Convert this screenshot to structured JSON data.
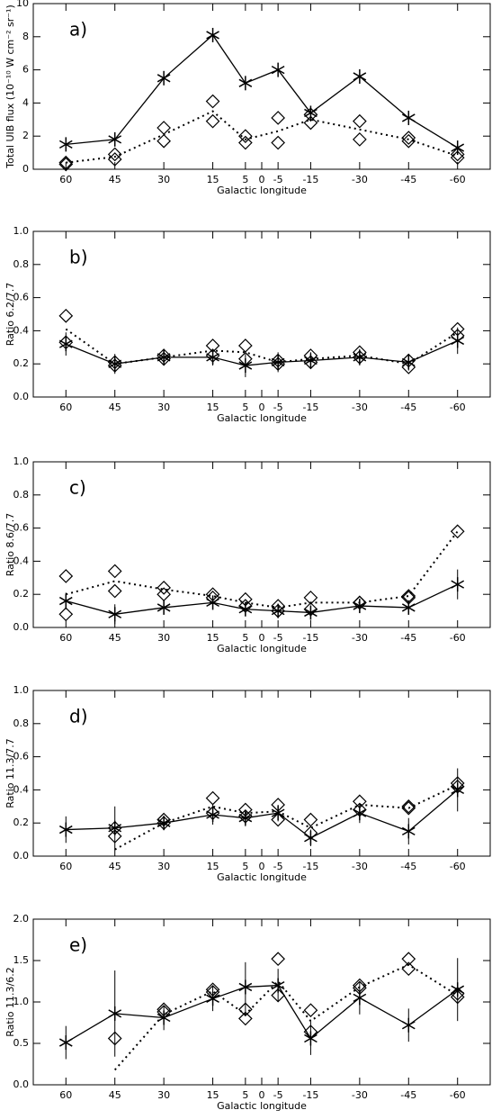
{
  "chart_data": [
    {
      "type": "line",
      "label": "a)",
      "ylabel": "Total UIB flux (10⁻¹⁰ W cm⁻² sr⁻¹)",
      "xlabel": "Galactic longitude",
      "x": [
        60,
        45,
        30,
        15,
        5,
        -5,
        -15,
        -30,
        -45,
        -60
      ],
      "xlim": [
        70,
        -70
      ],
      "xticks": [
        60,
        45,
        30,
        15,
        5,
        0,
        -5,
        -15,
        -30,
        -45,
        -60
      ],
      "ylim": [
        0,
        10
      ],
      "yticks": [
        0,
        2,
        4,
        6,
        8,
        10
      ],
      "series": [
        {
          "color": "#000",
          "marker": "asterisk",
          "line": "solid",
          "values": [
            1.5,
            1.8,
            5.5,
            8.1,
            5.2,
            6.0,
            3.4,
            5.6,
            3.1,
            1.3
          ]
        },
        {
          "color": "#000",
          "marker": "diamond",
          "line": "none",
          "values": [
            0.4,
            0.9,
            2.5,
            4.1,
            2.0,
            3.1,
            3.3,
            2.9,
            1.9,
            0.9
          ]
        },
        {
          "color": "#000",
          "marker": "diamond",
          "line": "none",
          "values": [
            0.3,
            0.6,
            1.7,
            2.9,
            1.6,
            1.6,
            2.8,
            1.8,
            1.7,
            0.7
          ]
        },
        {
          "color": "#000",
          "marker": "none",
          "line": "dotted",
          "values": [
            0.4,
            0.75,
            2.1,
            3.5,
            1.8,
            2.3,
            3.0,
            2.4,
            1.8,
            0.8
          ]
        }
      ]
    },
    {
      "type": "line",
      "label": "b)",
      "ylabel": "Ratio 6.2/7.7",
      "xlabel": "Galactic longitude",
      "x": [
        60,
        45,
        30,
        15,
        5,
        -5,
        -15,
        -30,
        -45,
        -60
      ],
      "xlim": [
        70,
        -70
      ],
      "xticks": [
        60,
        45,
        30,
        15,
        5,
        0,
        -5,
        -15,
        -30,
        -45,
        -60
      ],
      "ylim": [
        0,
        1
      ],
      "yticks": [
        {
          "value": 0,
          "label": "0.0"
        },
        0.2,
        0.4,
        0.6,
        0.8,
        {
          "value": 1,
          "label": "1.0"
        }
      ],
      "series": [
        {
          "color": "#000",
          "marker": "asterisk",
          "line": "solid",
          "values": [
            0.32,
            0.2,
            0.24,
            0.24,
            0.19,
            0.21,
            0.22,
            0.24,
            0.21,
            0.34
          ],
          "errors": [
            0.07,
            0.06,
            0.05,
            0.05,
            0.07,
            0.06,
            0.05,
            0.05,
            0.05,
            0.08
          ]
        },
        {
          "color": "#000",
          "marker": "diamond",
          "line": "none",
          "values": [
            0.49,
            0.21,
            0.25,
            0.31,
            0.31,
            0.22,
            0.25,
            0.27,
            0.22,
            0.41
          ]
        },
        {
          "color": "#000",
          "marker": "diamond",
          "line": "none",
          "values": [
            0.33,
            0.19,
            0.23,
            0.25,
            0.23,
            0.2,
            0.21,
            0.24,
            0.18,
            0.37
          ]
        },
        {
          "color": "#000",
          "marker": "none",
          "line": "dotted",
          "values": [
            0.41,
            0.2,
            0.24,
            0.28,
            0.27,
            0.21,
            0.23,
            0.25,
            0.2,
            0.39
          ]
        }
      ]
    },
    {
      "type": "line",
      "label": "c)",
      "ylabel": "Ratio 8.6/7.7",
      "xlabel": "Galactic longitude",
      "x": [
        60,
        45,
        30,
        15,
        5,
        -5,
        -15,
        -30,
        -45,
        -60
      ],
      "xlim": [
        70,
        -70
      ],
      "xticks": [
        60,
        45,
        30,
        15,
        5,
        0,
        -5,
        -15,
        -30,
        -45,
        -60
      ],
      "ylim": [
        0,
        1
      ],
      "yticks": [
        {
          "value": 0,
          "label": "0.0"
        },
        0.2,
        0.4,
        0.6,
        0.8,
        {
          "value": 1,
          "label": "1.0"
        }
      ],
      "series": [
        {
          "color": "#000",
          "marker": "asterisk",
          "line": "solid",
          "values": [
            0.16,
            0.08,
            0.12,
            0.15,
            0.11,
            0.1,
            0.09,
            0.13,
            0.12,
            0.26
          ],
          "errors": [
            0.05,
            0.06,
            0.04,
            0.04,
            0.04,
            0.04,
            0.04,
            0.04,
            0.04,
            0.09
          ]
        },
        {
          "color": "#000",
          "marker": "diamond",
          "line": "none",
          "values": [
            0.31,
            0.34,
            0.24,
            0.2,
            0.17,
            0.13,
            0.18,
            0.15,
            0.19,
            0.58
          ]
        },
        {
          "color": "#000",
          "marker": "diamond",
          "line": "none",
          "values": [
            0.08,
            0.22,
            0.2,
            0.18,
            0.13,
            0.1,
            0.11,
            0.15,
            0.18,
            null
          ]
        },
        {
          "color": "#000",
          "marker": "none",
          "line": "dotted",
          "values": [
            0.2,
            0.28,
            0.23,
            0.19,
            0.15,
            0.12,
            0.15,
            0.15,
            0.19,
            0.58
          ]
        }
      ]
    },
    {
      "type": "line",
      "label": "d)",
      "ylabel": "Ratio 11.3/7.7",
      "xlabel": "Galactic longitude",
      "x": [
        60,
        45,
        30,
        15,
        5,
        -5,
        -15,
        -30,
        -45,
        -60
      ],
      "xlim": [
        70,
        -70
      ],
      "xticks": [
        60,
        45,
        30,
        15,
        5,
        0,
        -5,
        -15,
        -30,
        -45,
        -60
      ],
      "ylim": [
        0,
        1
      ],
      "yticks": [
        {
          "value": 0,
          "label": "0.0"
        },
        0.2,
        0.4,
        0.6,
        0.8,
        {
          "value": 1,
          "label": "1.0"
        }
      ],
      "series": [
        {
          "color": "#000",
          "marker": "asterisk",
          "line": "solid",
          "values": [
            0.16,
            0.17,
            0.2,
            0.25,
            0.23,
            0.26,
            0.11,
            0.26,
            0.15,
            0.4
          ],
          "errors": [
            0.08,
            0.13,
            0.03,
            0.06,
            0.05,
            0.05,
            0.05,
            0.06,
            0.08,
            0.13
          ]
        },
        {
          "color": "#000",
          "marker": "diamond",
          "line": "none",
          "values": [
            null,
            0.17,
            0.22,
            0.35,
            0.28,
            0.31,
            0.22,
            0.33,
            0.29,
            0.44
          ]
        },
        {
          "color": "#000",
          "marker": "diamond",
          "line": "none",
          "values": [
            null,
            0.12,
            0.2,
            0.26,
            0.24,
            0.22,
            0.14,
            0.28,
            0.3,
            0.42
          ]
        },
        {
          "color": "#000",
          "marker": "none",
          "line": "dotted",
          "values": [
            null,
            0.04,
            0.2,
            0.3,
            0.26,
            0.27,
            0.17,
            0.31,
            0.29,
            0.43
          ]
        }
      ]
    },
    {
      "type": "line",
      "label": "e)",
      "ylabel": "Ratio 11.3/6.2",
      "xlabel": "Galactic longitude",
      "x": [
        60,
        45,
        30,
        15,
        5,
        -5,
        -15,
        -30,
        -45,
        -60
      ],
      "xlim": [
        70,
        -70
      ],
      "xticks": [
        60,
        45,
        30,
        15,
        5,
        0,
        -5,
        -15,
        -30,
        -45,
        -60
      ],
      "ylim": [
        0,
        2
      ],
      "yticks": [
        {
          "value": 0,
          "label": "0.0"
        },
        0.5,
        {
          "value": 1,
          "label": "1.0"
        },
        1.5,
        {
          "value": 2,
          "label": "2.0"
        }
      ],
      "series": [
        {
          "color": "#000",
          "marker": "asterisk",
          "line": "solid",
          "values": [
            0.51,
            0.86,
            0.81,
            1.04,
            1.18,
            1.2,
            0.56,
            1.05,
            0.72,
            1.15
          ],
          "errors": [
            0.2,
            0.52,
            0.15,
            0.15,
            0.3,
            0.2,
            0.2,
            0.2,
            0.2,
            0.38
          ]
        },
        {
          "color": "#000",
          "marker": "diamond",
          "line": "none",
          "values": [
            null,
            0.56,
            0.91,
            1.15,
            0.91,
            1.52,
            0.9,
            1.2,
            1.52,
            1.1
          ]
        },
        {
          "color": "#000",
          "marker": "diamond",
          "line": "none",
          "values": [
            null,
            null,
            0.88,
            1.12,
            0.8,
            1.08,
            0.64,
            1.17,
            1.4,
            1.06
          ]
        },
        {
          "color": "#000",
          "marker": "none",
          "line": "dotted",
          "values": [
            null,
            0.18,
            0.85,
            1.13,
            0.85,
            1.25,
            0.77,
            1.18,
            1.45,
            1.08
          ]
        }
      ]
    }
  ]
}
